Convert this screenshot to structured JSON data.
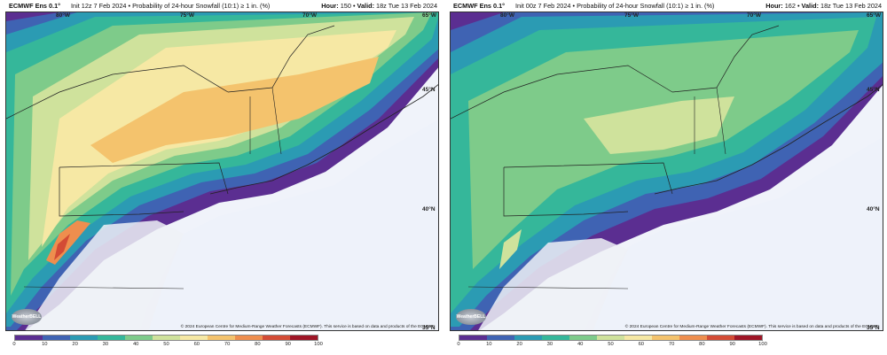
{
  "panels": [
    {
      "model": "ECMWF Ens 0.1°",
      "description": "Init 12z 7 Feb 2024 • Probability of 24-hour Snowfall (10:1) ≥ 1 in. (%)",
      "hour_label": "Hour:",
      "hour": "150",
      "valid_label": "Valid:",
      "valid": "18z Tue 13 Feb 2024"
    },
    {
      "model": "ECMWF Ens 0.1°",
      "description": "Init 00z 7 Feb 2024 • Probability of 24-hour Snowfall (10:1) ≥ 1 in. (%)",
      "hour_label": "Hour:",
      "hour": "162",
      "valid_label": "Valid:",
      "valid": "18z Tue 13 Feb 2024"
    }
  ],
  "lat_lon_labels": {
    "lon80": "80°W",
    "lon75": "75°W",
    "lon70": "70°W",
    "lon65": "65°W",
    "lat45": "45°N",
    "lat40": "40°N",
    "lat35": "35°N"
  },
  "copyright": "© 2024 European Centre for Medium-Range Weather Forecasts (ECMWF). This service is based on data and products of the ECMWF.",
  "logo_text": "WeatherBELL",
  "colorbar": {
    "ticks": [
      "0",
      "10",
      "20",
      "30",
      "40",
      "50",
      "60",
      "70",
      "80",
      "90",
      "100"
    ],
    "colors": [
      "#5b2e91",
      "#3f63b3",
      "#2b9bb3",
      "#35b79a",
      "#7ecb8a",
      "#cfe29c",
      "#f6e8a4",
      "#f4c36d",
      "#ee8e4e",
      "#d34b35",
      "#9e1526"
    ]
  }
}
